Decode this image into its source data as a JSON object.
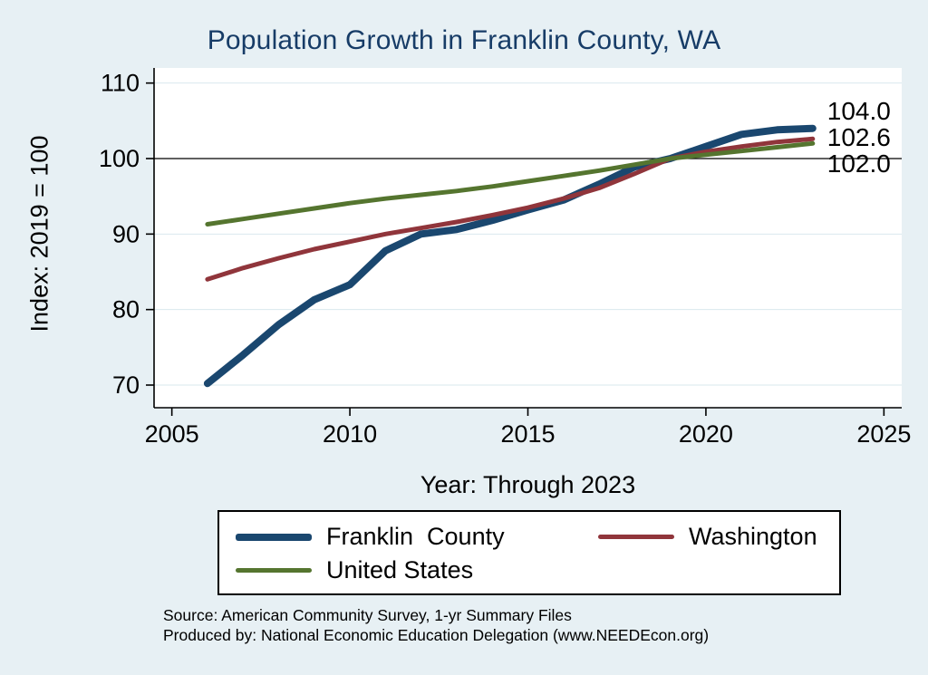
{
  "chart_data": {
    "type": "line",
    "title": "Population Growth in Franklin County, WA",
    "xlabel": "Year: Through 2023",
    "ylabel": "Index: 2019 = 100",
    "x": [
      2006,
      2007,
      2008,
      2009,
      2010,
      2011,
      2012,
      2013,
      2014,
      2015,
      2016,
      2017,
      2018,
      2019,
      2020,
      2021,
      2022,
      2023
    ],
    "series": [
      {
        "name": "Franklin  County",
        "color": "#1a476f",
        "width": 8,
        "values": [
          70.2,
          74.0,
          78.0,
          81.3,
          83.3,
          87.8,
          90.0,
          90.6,
          91.8,
          93.2,
          94.5,
          96.6,
          98.9,
          100.0,
          101.6,
          103.2,
          103.8,
          104.0
        ],
        "end_label": "104.0"
      },
      {
        "name": "Washington",
        "color": "#90353b",
        "width": 5,
        "values": [
          84.0,
          85.5,
          86.8,
          88.0,
          89.0,
          90.0,
          90.8,
          91.6,
          92.5,
          93.5,
          94.7,
          96.1,
          98.0,
          100.0,
          100.9,
          101.6,
          102.2,
          102.6
        ],
        "end_label": "102.6"
      },
      {
        "name": "United States",
        "color": "#55752f",
        "width": 5,
        "values": [
          91.3,
          92.0,
          92.7,
          93.4,
          94.1,
          94.7,
          95.2,
          95.7,
          96.3,
          97.0,
          97.7,
          98.4,
          99.2,
          100.0,
          100.5,
          101.0,
          101.5,
          102.0
        ],
        "end_label": "102.0"
      }
    ],
    "xlim": [
      2004.5,
      2025.5
    ],
    "ylim": [
      67,
      112
    ],
    "x_ticks": [
      2005,
      2010,
      2015,
      2020,
      2025
    ],
    "y_ticks": [
      70,
      80,
      90,
      100,
      110
    ],
    "ref_line_y": 100,
    "grid": true,
    "legend_position": "bottom"
  },
  "notes": {
    "source": "Source: American Community Survey, 1-yr Summary Files",
    "produced_by": "Produced by: National Economic Education Delegation (www.NEEDEcon.org)"
  },
  "colors": {
    "background": "#e7f0f4",
    "plot_background": "#ffffff",
    "gridline": "#d9e8ee",
    "axis": "#000000",
    "ref_line": "#000000",
    "title": "#173c67"
  }
}
